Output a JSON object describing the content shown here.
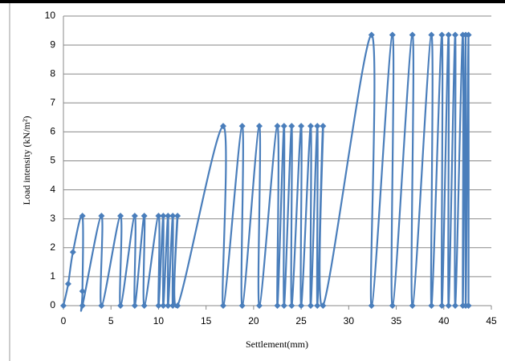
{
  "chart_data": {
    "type": "scatter-smooth",
    "xlabel": "Settlement(mm)",
    "ylabel": "Load intensity (kN/m²)",
    "xlim": [
      0,
      45
    ],
    "xticks": [
      0,
      5,
      10,
      15,
      20,
      25,
      30,
      35,
      40,
      45
    ],
    "ylim": [
      0,
      10
    ],
    "yticks": [
      0,
      1,
      2,
      3,
      4,
      5,
      6,
      7,
      8,
      9,
      10
    ],
    "grid": true,
    "x": [
      0,
      0.5,
      1,
      2,
      2,
      2,
      4,
      4,
      6,
      6,
      7.5,
      7.5,
      8.5,
      8.5,
      10,
      10,
      10.5,
      10.5,
      11,
      11,
      11.5,
      11.5,
      12,
      12,
      16.8,
      16.8,
      18.8,
      18.8,
      20.6,
      20.6,
      22.5,
      22.5,
      23.2,
      23.2,
      24,
      24,
      25,
      25,
      26,
      26,
      26.7,
      26.7,
      27.3,
      27.3,
      32.4,
      32.4,
      34.6,
      34.6,
      36.7,
      36.7,
      38.7,
      38.7,
      39.8,
      39.8,
      40.5,
      40.5,
      41.2,
      41.2,
      42,
      42,
      42.3,
      42.3,
      42.6,
      42.6
    ],
    "series": [
      {
        "color": "#4a7ebb",
        "values": [
          0,
          0.75,
          1.85,
          3.1,
          0.5,
          0,
          3.1,
          0,
          3.1,
          0,
          3.1,
          0,
          3.1,
          0,
          3.1,
          0,
          3.1,
          0,
          3.1,
          0,
          3.1,
          0,
          3.1,
          0,
          6.2,
          0,
          6.2,
          0,
          6.2,
          0,
          6.2,
          0,
          6.2,
          0,
          6.2,
          0,
          6.2,
          0,
          6.2,
          0,
          6.2,
          0,
          6.2,
          0,
          9.35,
          0,
          9.35,
          0,
          9.35,
          0,
          9.35,
          0,
          9.35,
          0,
          9.35,
          0,
          9.35,
          0,
          9.35,
          0,
          9.35,
          0,
          9.35,
          0
        ]
      }
    ]
  }
}
